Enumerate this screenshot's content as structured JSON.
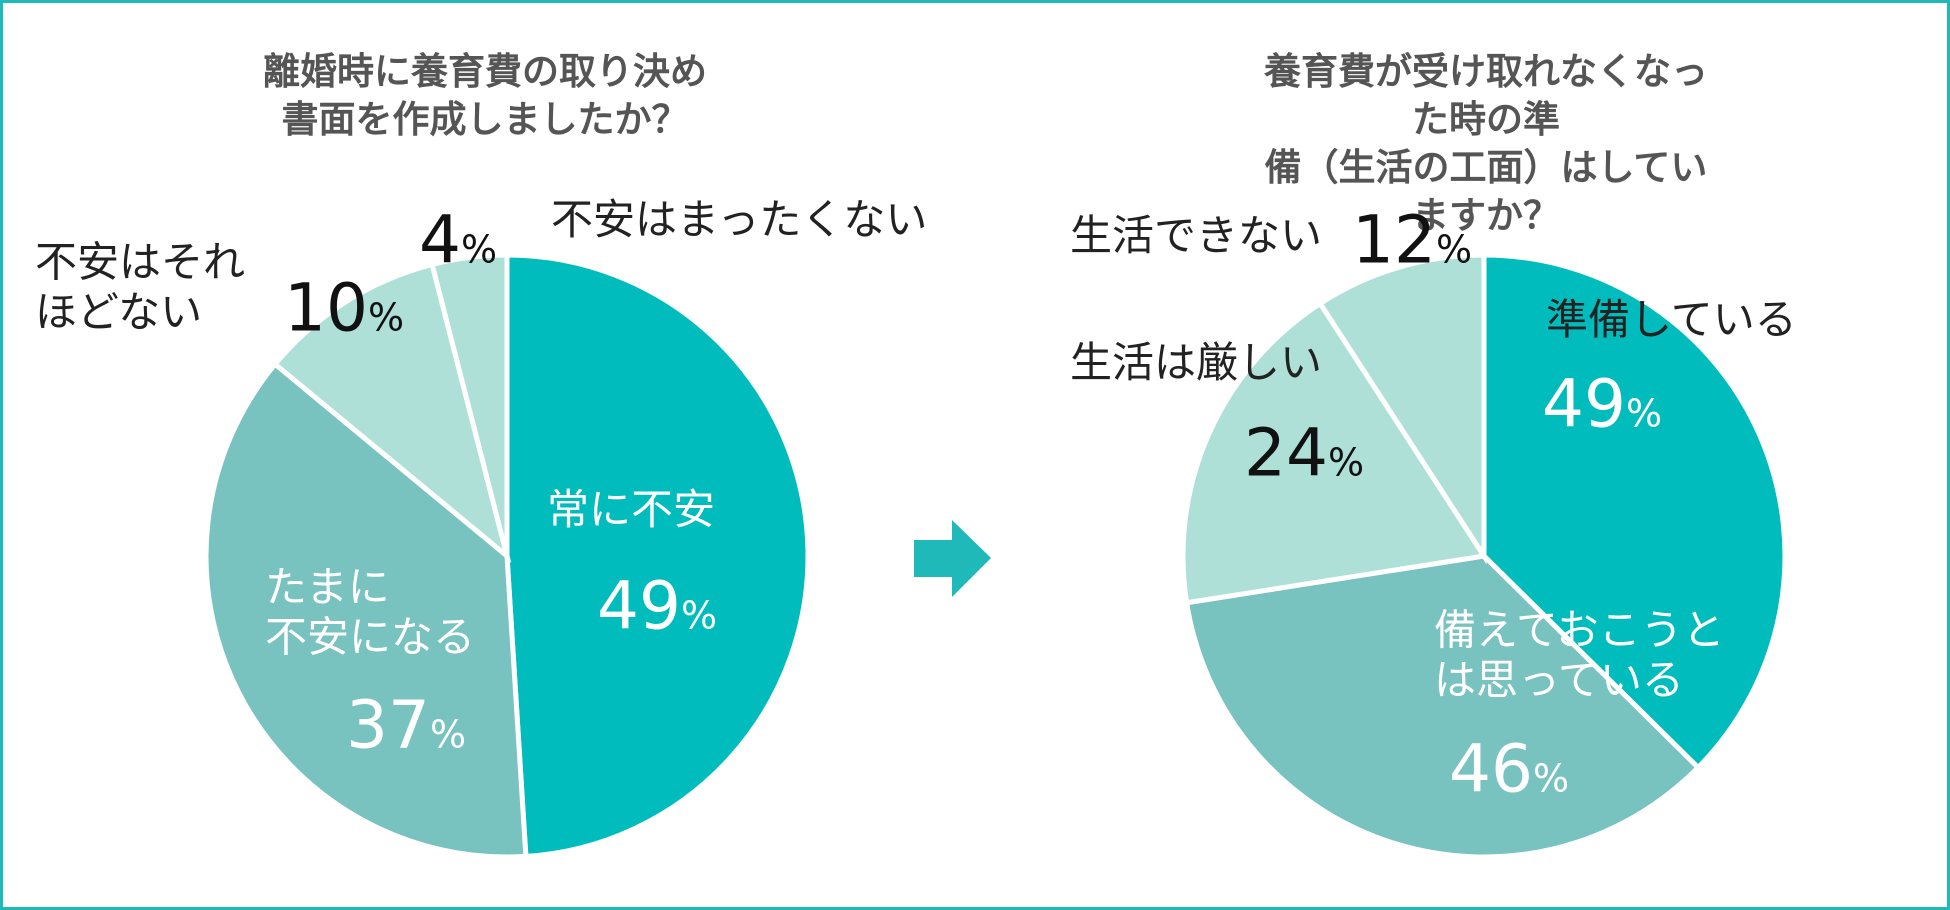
{
  "chart_data": [
    {
      "type": "pie",
      "title": "離婚時に養育費の取り決め\n書面を作成しましたか？",
      "categories": [
        "常に不安",
        "たまに\n不安になる",
        "不安はそれ\nほどない",
        "不安はまったくない"
      ],
      "values": [
        49,
        37,
        10,
        4
      ],
      "unit": "%",
      "colors": [
        "#00bcbd",
        "#78c2bf",
        "#aee0d8",
        "#aee0d8"
      ]
    },
    {
      "type": "pie",
      "title": "養育費が受け取れなくなった時の準\n備（生活の工面）はしていますか？",
      "categories": [
        "準備している",
        "備えておこうと\nは思っている",
        "生活は厳しい",
        "生活できない"
      ],
      "values": [
        49,
        46,
        24,
        12
      ],
      "unit": "%",
      "colors": [
        "#00bcbd",
        "#78c2bf",
        "#aee0d8",
        "#aee0d8"
      ]
    }
  ]
}
